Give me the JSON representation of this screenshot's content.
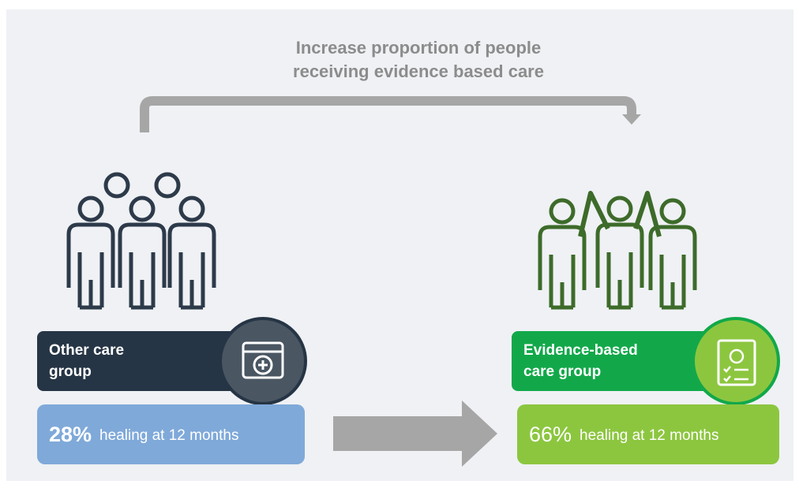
{
  "header": {
    "title_lines": [
      "Increase proportion of people",
      "receiving evidence based care"
    ]
  },
  "groups": [
    {
      "label_lines": [
        "Other care",
        "group"
      ],
      "stat": "28%",
      "stat_text": "healing at 12 months"
    },
    {
      "label_lines": [
        "Evidence-based",
        "care group"
      ],
      "stat": "66%",
      "stat_text": "healing at 12 months"
    }
  ]
}
